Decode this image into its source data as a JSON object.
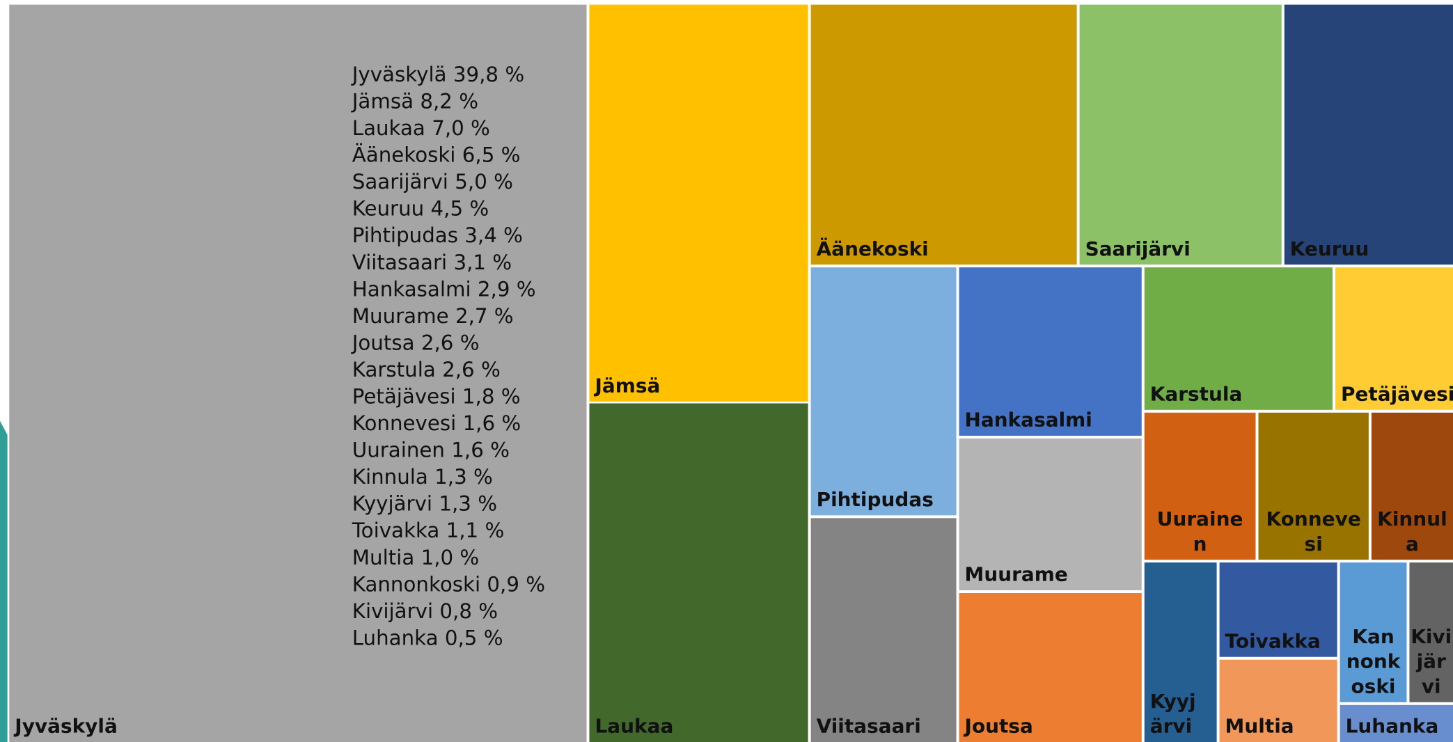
{
  "chart_data": {
    "type": "treemap",
    "categories": [
      "Jyväskylä",
      "Jämsä",
      "Laukaa",
      "Äänekoski",
      "Saarijärvi",
      "Keuruu",
      "Pihtipudas",
      "Viitasaari",
      "Hankasalmi",
      "Muurame",
      "Joutsa",
      "Karstula",
      "Petäjävesi",
      "Konnevesi",
      "Uurainen",
      "Kinnula",
      "Kyyjärvi",
      "Toivakka",
      "Multia",
      "Kannonkoski",
      "Kivijärvi",
      "Luhanka"
    ],
    "values": [
      39.8,
      8.2,
      7.0,
      6.5,
      5.0,
      4.5,
      3.4,
      3.1,
      2.9,
      2.7,
      2.6,
      2.6,
      1.8,
      1.6,
      1.6,
      1.3,
      1.3,
      1.1,
      1.0,
      0.9,
      0.8,
      0.5
    ],
    "value_labels": [
      "39,8 %",
      "8,2 %",
      "7,0 %",
      "6,5 %",
      "5,0 %",
      "4,5 %",
      "3,4 %",
      "3,1 %",
      "2,9 %",
      "2,7 %",
      "2,6 %",
      "2,6 %",
      "1,8 %",
      "1,6 %",
      "1,6 %",
      "1,3 %",
      "1,3 %",
      "1,1 %",
      "1,0 %",
      "0,9 %",
      "0,8 %",
      "0,5 %"
    ],
    "colors": [
      "#a5a5a5",
      "#ffc000",
      "#43682b",
      "#cc9a00",
      "#8cc168",
      "#264478",
      "#7cafdd",
      "#848484",
      "#4472c4",
      "#b4b4b4",
      "#ed7d31",
      "#70ad47",
      "#ffcd33",
      "#997300",
      "#d26012",
      "#9e480e",
      "#255e91",
      "#335aa1",
      "#f1975a",
      "#5b9bd5",
      "#636363",
      "#698ed0"
    ]
  }
}
